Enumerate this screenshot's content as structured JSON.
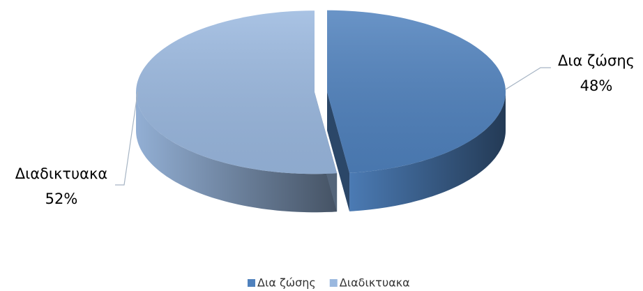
{
  "chart_data": {
    "type": "pie3d",
    "categories": [
      "Δια ζώσης",
      "Διαδικτυακα"
    ],
    "values": [
      48,
      52
    ],
    "value_labels": [
      "48%",
      "52%"
    ],
    "colors": [
      "#4f81bd",
      "#9ab8df"
    ],
    "legend": "bottom"
  }
}
